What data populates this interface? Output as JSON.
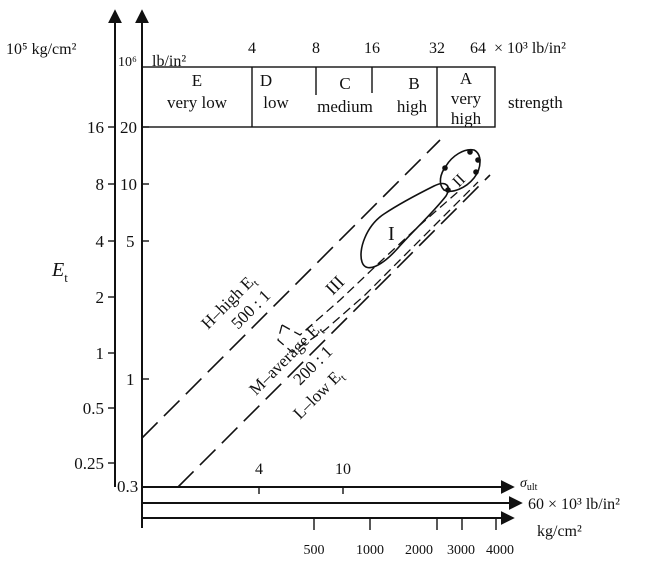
{
  "left_axis": {
    "unit": "10⁵ kg/cm²",
    "ticks": [
      "16",
      "8",
      "4",
      "2",
      "1",
      "0.5",
      "0.25"
    ],
    "symbol": "E",
    "subscript": "t"
  },
  "inner_axis": {
    "unit_prefix": "10⁶",
    "ticks": [
      "20",
      "10",
      "5",
      "1",
      "0.3"
    ]
  },
  "top_scale": {
    "unit": "lb/in²",
    "ticks": [
      "4",
      "8",
      "16",
      "32",
      "64"
    ],
    "multiplier": "× 10³ lb/in²"
  },
  "strength_classes": {
    "title": "strength",
    "items": [
      {
        "letter": "E",
        "name": "very low"
      },
      {
        "letter": "D",
        "name": "low"
      },
      {
        "letter": "C",
        "name": "medium"
      },
      {
        "letter": "B",
        "name": "high"
      },
      {
        "letter": "A",
        "name": "very high"
      }
    ]
  },
  "bottom_axis": {
    "symbol": "σ",
    "subscript": "ult",
    "lb_ticks": [
      "4",
      "10"
    ],
    "lb_unit": "60 × 10³ lb/in²",
    "kg_ticks": [
      "500",
      "1000",
      "2000",
      "3000",
      "4000"
    ],
    "kg_unit": "kg/cm²"
  },
  "lines": {
    "high": {
      "label": "H–high E",
      "ratio": "500 : 1"
    },
    "average": {
      "label": "M–average E"
    },
    "low": {
      "label": "L–low E",
      "ratio": "200 : 1"
    }
  },
  "regions": [
    "I",
    "II",
    "III"
  ]
}
